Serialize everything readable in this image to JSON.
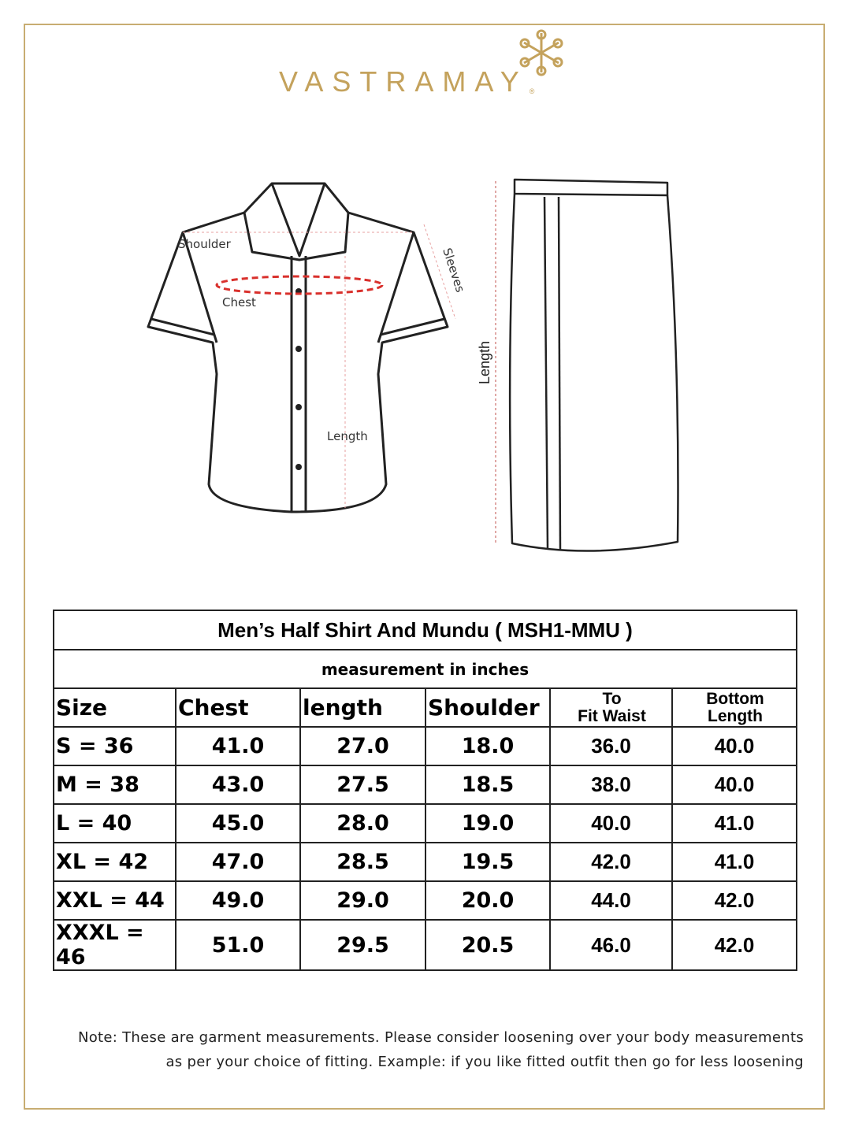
{
  "brand": {
    "name": "VASTRAMAY",
    "registered": "®",
    "color": "#c4a25c"
  },
  "diagram": {
    "shirt_labels": {
      "shoulder": "Shoulder",
      "chest": "Chest",
      "sleeves": "Sleeves",
      "length": "Length"
    },
    "mundu_labels": {
      "length": "Length"
    }
  },
  "table": {
    "title": "Men’s Half Shirt And Mundu ( MSH1-MMU )",
    "subtitle": "measurement in inches",
    "headers": [
      "Size",
      "Chest",
      "length",
      "Shoulder",
      "To\nFit Waist",
      "Bottom\nLength"
    ],
    "header_lines": {
      "waist": [
        "To",
        "Fit Waist"
      ],
      "bottom": [
        "Bottom",
        "Length"
      ]
    },
    "rows": [
      [
        "S = 36",
        "41.0",
        "27.0",
        "18.0",
        "36.0",
        "40.0"
      ],
      [
        "M = 38",
        "43.0",
        "27.5",
        "18.5",
        "38.0",
        "40.0"
      ],
      [
        "L = 40",
        "45.0",
        "28.0",
        "19.0",
        "40.0",
        "41.0"
      ],
      [
        "XL = 42",
        "47.0",
        "28.5",
        "19.5",
        "42.0",
        "41.0"
      ],
      [
        "XXL = 44",
        "49.0",
        "29.0",
        "20.0",
        "44.0",
        "42.0"
      ],
      [
        "XXXL = 46",
        "51.0",
        "29.5",
        "20.5",
        "46.0",
        "42.0"
      ]
    ]
  },
  "note": {
    "line1": "Note: These are garment measurements. Please consider loosening over your body measurements",
    "line2": "as per your choice of fitting. Example: if you like fitted outfit then go for less loosening"
  }
}
